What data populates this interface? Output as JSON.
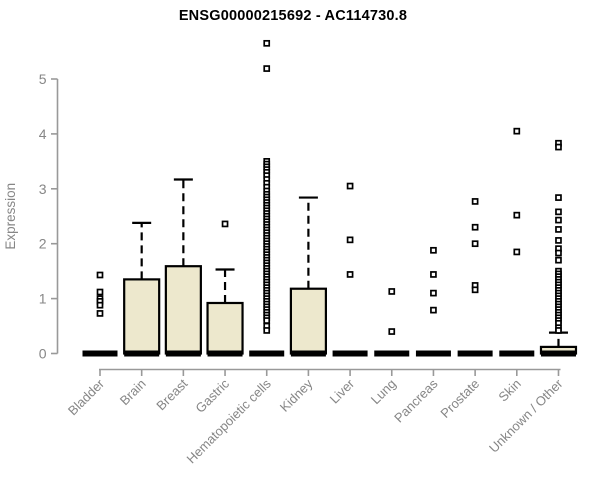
{
  "title": "ENSG00000215692 - AC114730.8",
  "colors": {
    "box_fill": "#ede8cd",
    "box_border": "#000000",
    "axis": "#999999",
    "label": "#868686",
    "title": "#000000",
    "background": "#ffffff"
  },
  "y_axis": {
    "label": "Expression",
    "ticks": [
      0,
      1,
      2,
      3,
      4,
      5
    ]
  },
  "chart_data": {
    "type": "box",
    "title": "ENSG00000215692 - AC114730.8",
    "xlabel": "",
    "ylabel": "Expression",
    "ylim": [
      0,
      5.8
    ],
    "y_ticks": [
      0,
      1,
      2,
      3,
      4,
      5
    ],
    "grid": false,
    "legend": "none",
    "categories": [
      "Bladder",
      "Brain",
      "Breast",
      "Gastric",
      "Hematopoietic cells",
      "Kidney",
      "Liver",
      "Lung",
      "Pancreas",
      "Prostate",
      "Skin",
      "Unknown / Other"
    ],
    "boxes": [
      {
        "label": "Bladder",
        "q1": 0,
        "median": 0,
        "q3": 0,
        "whisker_low": 0,
        "whisker_high": 0,
        "outliers": [
          1.43,
          1.12,
          1.0,
          0.95,
          0.88,
          0.73
        ]
      },
      {
        "label": "Brain",
        "q1": 0,
        "median": 0,
        "q3": 1.35,
        "whisker_low": 0,
        "whisker_high": 2.38,
        "outliers": []
      },
      {
        "label": "Breast",
        "q1": 0,
        "median": 0,
        "q3": 1.59,
        "whisker_low": 0,
        "whisker_high": 3.17,
        "outliers": []
      },
      {
        "label": "Gastric",
        "q1": 0,
        "median": 0,
        "q3": 0.92,
        "whisker_low": 0,
        "whisker_high": 1.53,
        "outliers": [
          2.36
        ]
      },
      {
        "label": "Hematopoietic cells",
        "q1": 0,
        "median": 0,
        "q3": 0,
        "whisker_low": 0,
        "whisker_high": 0,
        "outliers": [
          5.65,
          5.19,
          3.5,
          3.45,
          3.4,
          3.35,
          3.3,
          3.24,
          3.17,
          3.1,
          3.03,
          2.96,
          2.9,
          2.85,
          2.8,
          2.75,
          2.7,
          2.65,
          2.6,
          2.55,
          2.5,
          2.45,
          2.4,
          2.35,
          2.3,
          2.25,
          2.2,
          2.15,
          2.1,
          2.05,
          2.0,
          1.95,
          1.9,
          1.85,
          1.8,
          1.75,
          1.7,
          1.65,
          1.6,
          1.55,
          1.5,
          1.45,
          1.4,
          1.35,
          1.3,
          1.25,
          1.2,
          1.15,
          1.1,
          1.05,
          1.0,
          0.95,
          0.9,
          0.85,
          0.8,
          0.75,
          0.7,
          0.65,
          0.6,
          0.5,
          0.42
        ]
      },
      {
        "label": "Kidney",
        "q1": 0,
        "median": 0,
        "q3": 1.18,
        "whisker_low": 0,
        "whisker_high": 2.84,
        "outliers": []
      },
      {
        "label": "Liver",
        "q1": 0,
        "median": 0,
        "q3": 0,
        "whisker_low": 0,
        "whisker_high": 0,
        "outliers": [
          3.05,
          2.07,
          1.44
        ]
      },
      {
        "label": "Lung",
        "q1": 0,
        "median": 0,
        "q3": 0,
        "whisker_low": 0,
        "whisker_high": 0,
        "outliers": [
          1.13,
          0.4
        ]
      },
      {
        "label": "Pancreas",
        "q1": 0,
        "median": 0,
        "q3": 0,
        "whisker_low": 0,
        "whisker_high": 0,
        "outliers": [
          1.88,
          1.44,
          1.1,
          0.79
        ]
      },
      {
        "label": "Prostate",
        "q1": 0,
        "median": 0,
        "q3": 0,
        "whisker_low": 0,
        "whisker_high": 0,
        "outliers": [
          2.77,
          2.3,
          2.0,
          1.24,
          1.16
        ]
      },
      {
        "label": "Skin",
        "q1": 0,
        "median": 0,
        "q3": 0,
        "whisker_low": 0,
        "whisker_high": 0,
        "outliers": [
          4.05,
          2.52,
          1.85
        ]
      },
      {
        "label": "Unknown / Other",
        "q1": 0,
        "median": 0,
        "q3": 0.12,
        "whisker_low": 0,
        "whisker_high": 0.38,
        "outliers": [
          3.83,
          3.76,
          2.84,
          2.58,
          2.43,
          2.26,
          2.06,
          1.91,
          1.83,
          1.7,
          1.5,
          1.45,
          1.4,
          1.35,
          1.3,
          1.25,
          1.2,
          1.15,
          1.1,
          1.05,
          1.0,
          0.95,
          0.9,
          0.85,
          0.8,
          0.75,
          0.7,
          0.65,
          0.6,
          0.55,
          0.47,
          0.42
        ]
      }
    ]
  }
}
